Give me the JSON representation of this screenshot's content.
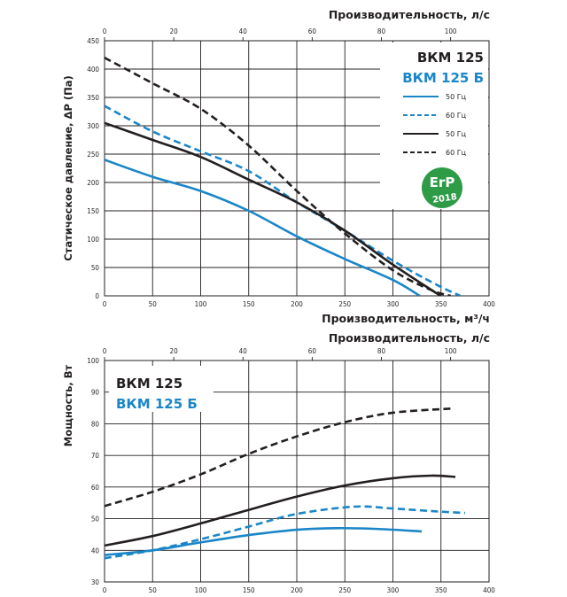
{
  "colors": {
    "black_series": "#231f20",
    "blue_series": "#1a86c8",
    "erp_badge": "#2e9b47",
    "grid": "#231f20"
  },
  "chart_data": [
    {
      "type": "line",
      "xlabel": "Производительность, м³/ч",
      "x2label": "Производительность, л/с",
      "ylabel": "Статическое давление, ΔР (Па)",
      "xlim": [
        0,
        400
      ],
      "ylim": [
        0,
        450
      ],
      "x2lim": [
        0,
        111.1
      ],
      "xticks": [
        0,
        50,
        100,
        150,
        200,
        250,
        300,
        350,
        400
      ],
      "yticks": [
        0,
        50,
        100,
        150,
        200,
        250,
        300,
        350,
        400,
        450
      ],
      "x2ticks": [
        0,
        20,
        40,
        60,
        80,
        100
      ],
      "grid": true,
      "models": [
        "ВКМ 125",
        "ВКМ 125 Б"
      ],
      "legend_position": "top-right",
      "badge": {
        "icon": "erp-2018-badge",
        "line1": "ErP",
        "line2": "2018"
      },
      "series": [
        {
          "name": "50 Гц",
          "model": "ВКМ 125 Б",
          "color": "blue",
          "dash": "solid",
          "points": [
            [
              0,
              240
            ],
            [
              50,
              210
            ],
            [
              100,
              185
            ],
            [
              150,
              150
            ],
            [
              200,
              105
            ],
            [
              250,
              65
            ],
            [
              300,
              28
            ],
            [
              328,
              0
            ]
          ]
        },
        {
          "name": "60 Гц",
          "model": "ВКМ 125 Б",
          "color": "blue",
          "dash": "dashed",
          "points": [
            [
              0,
              335
            ],
            [
              50,
              290
            ],
            [
              100,
              255
            ],
            [
              150,
              220
            ],
            [
              200,
              165
            ],
            [
              250,
              115
            ],
            [
              300,
              62
            ],
            [
              345,
              20
            ],
            [
              370,
              0
            ]
          ]
        },
        {
          "name": "50 Гц",
          "model": "ВКМ 125",
          "color": "black",
          "dash": "solid",
          "points": [
            [
              0,
              305
            ],
            [
              50,
              275
            ],
            [
              100,
              245
            ],
            [
              150,
              205
            ],
            [
              200,
              165
            ],
            [
              250,
              115
            ],
            [
              300,
              55
            ],
            [
              345,
              5
            ],
            [
              350,
              0
            ]
          ]
        },
        {
          "name": "60 Гц",
          "model": "ВКМ 125",
          "color": "black",
          "dash": "dashed",
          "points": [
            [
              0,
              420
            ],
            [
              50,
              375
            ],
            [
              100,
              330
            ],
            [
              150,
              265
            ],
            [
              200,
              185
            ],
            [
              250,
              110
            ],
            [
              300,
              45
            ],
            [
              340,
              10
            ],
            [
              360,
              0
            ]
          ]
        }
      ]
    },
    {
      "type": "line",
      "xlabel": "",
      "x2label": "Производительность, л/с",
      "ylabel": "Мощность, Вт",
      "xlim": [
        0,
        400
      ],
      "ylim": [
        30,
        100
      ],
      "x2lim": [
        0,
        111.1
      ],
      "xticks": [
        0,
        50,
        100,
        150,
        200,
        250,
        300,
        350,
        400
      ],
      "yticks": [
        30,
        40,
        50,
        60,
        70,
        80,
        90,
        100
      ],
      "x2ticks": [
        0,
        20,
        40,
        60,
        80,
        100
      ],
      "grid": true,
      "models": [
        "ВКМ 125",
        "ВКМ 125 Б"
      ],
      "series": [
        {
          "model": "ВКМ 125 Б",
          "color": "blue",
          "dash": "solid",
          "points": [
            [
              0,
              38.5
            ],
            [
              50,
              40
            ],
            [
              100,
              42.5
            ],
            [
              150,
              44.8
            ],
            [
              200,
              46.5
            ],
            [
              240,
              47
            ],
            [
              280,
              46.8
            ],
            [
              330,
              46
            ]
          ]
        },
        {
          "model": "ВКМ 125 Б",
          "color": "blue",
          "dash": "dashed",
          "points": [
            [
              0,
              37.5
            ],
            [
              50,
              40
            ],
            [
              100,
              43.5
            ],
            [
              150,
              47.5
            ],
            [
              200,
              51.5
            ],
            [
              260,
              53.8
            ],
            [
              300,
              53.2
            ],
            [
              350,
              52.2
            ],
            [
              375,
              51.8
            ]
          ]
        },
        {
          "model": "ВКМ 125",
          "color": "black",
          "dash": "solid",
          "points": [
            [
              0,
              41.5
            ],
            [
              50,
              44.5
            ],
            [
              100,
              48.5
            ],
            [
              150,
              52.8
            ],
            [
              200,
              57
            ],
            [
              250,
              60.5
            ],
            [
              300,
              62.8
            ],
            [
              340,
              63.6
            ],
            [
              365,
              63.2
            ]
          ]
        },
        {
          "model": "ВКМ 125",
          "color": "black",
          "dash": "dashed",
          "points": [
            [
              0,
              54
            ],
            [
              50,
              58.5
            ],
            [
              100,
              64
            ],
            [
              150,
              70.5
            ],
            [
              200,
              76
            ],
            [
              250,
              80.5
            ],
            [
              300,
              83.5
            ],
            [
              360,
              84.8
            ]
          ]
        }
      ]
    }
  ]
}
